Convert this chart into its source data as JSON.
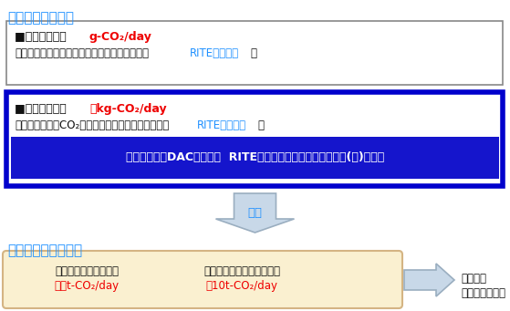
{
  "title_top": "材料の評価・開発",
  "title_bottom": "装置・システム設計",
  "box1_line1_black": "■ラボ試験装置  ",
  "box1_line1_red": "g-CO₂/day",
  "box1_line2_black1": "・アミン液、ハニカム担体などの材料探索　（",
  "box1_line2_blue": "RITEにて評価",
  "box1_line2_black2": "）",
  "box2_line1_black": "■小型試験装置  ",
  "box2_line1_red": "数kg-CO₂/day",
  "box2_line2_black1": "・実機サイズのCO₂固体吸収材ハニカムの評価　（",
  "box2_line2_blue": "RITEにて評価",
  "box2_line2_black2": "）",
  "box2_inner_text": "今回開発したDAC試験装置  RITE・三菱重工エンジニアリング(株)が連携",
  "arrow_text": "反映",
  "bottom_box_line1_left": "ベンチスケール試験機",
  "bottom_box_line1_right": "パイロットスケール試験機",
  "bottom_box_line2_left_red": "～数t-CO₂/day",
  "bottom_box_line2_right_red": "～10t-CO₂/day",
  "bottom_right_line1": "研究開発",
  "bottom_right_line2": "社会実装を加速",
  "color_cyan": "#1E90FF",
  "color_red": "#EE0000",
  "color_blue_border": "#0000CC",
  "color_black": "#111111",
  "color_white": "#FFFFFF",
  "color_beige": "#FAF0D0",
  "color_beige_border": "#D4B483",
  "color_arrow_fill": "#C8D8E8",
  "color_arrow_border": "#9AAEC0",
  "color_inner_banner": "#1515CC",
  "color_title_cyan": "#1E90FF"
}
